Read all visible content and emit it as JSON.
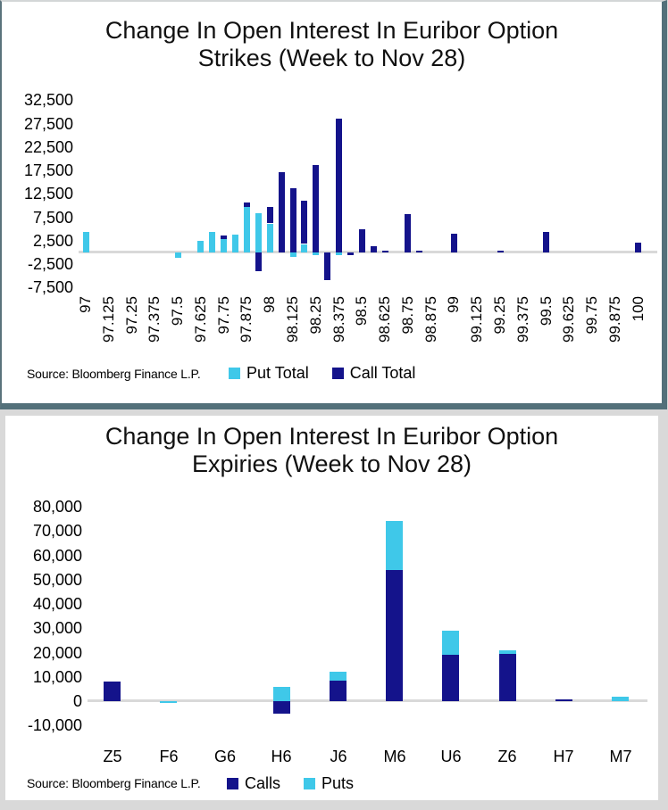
{
  "page": {
    "background": "#D9D9D9"
  },
  "colors": {
    "call": "#14138B",
    "put": "#3FC8E9",
    "axis_line": "#D9D9D9",
    "panel_border": "#53707A"
  },
  "chart_data": [
    {
      "type": "bar",
      "variant": "stacked-column",
      "title_line1": "Change In Open Interest In Euribor Option",
      "title_line2": "Strikes (Week to Nov 28)",
      "source": "Source: Bloomberg Finance L.P.",
      "legend": [
        {
          "name": "Put Total",
          "series": "put"
        },
        {
          "name": "Call Total",
          "series": "call"
        }
      ],
      "legend_position": "bottom",
      "grid": false,
      "ylim": [
        -7500,
        32500
      ],
      "ytick_step": 5000,
      "y_tick_values": [
        32500,
        27500,
        22500,
        17500,
        12500,
        7500,
        2500,
        -2500,
        -7500
      ],
      "y_tick_labels": [
        "32,500",
        "27,500",
        "22,500",
        "17,500",
        "12,500",
        "7,500",
        "2,500",
        "-2,500",
        "-7,500"
      ],
      "x_tick_labels": [
        "97",
        "97.125",
        "97.25",
        "97.375",
        "97.5",
        "97.625",
        "97.75",
        "97.875",
        "98",
        "98.125",
        "98.25",
        "98.375",
        "98.5",
        "98.625",
        "98.75",
        "98.875",
        "99",
        "99.125",
        "99.25",
        "99.375",
        "99.5",
        "99.625",
        "99.75",
        "99.875",
        "100"
      ],
      "x_label_rotation_deg": 90,
      "x_note": "strikes spaced 0.0625 apart; axis labelled every 0.125",
      "points": [
        {
          "strike": "97",
          "put": 4400,
          "call": 0
        },
        {
          "strike": "97.5",
          "put": -1100,
          "call": 0
        },
        {
          "strike": "97.625",
          "put": 2500,
          "call": 0
        },
        {
          "strike": "97.6875",
          "put": 4400,
          "call": 0
        },
        {
          "strike": "97.75",
          "put": 2900,
          "call": 700
        },
        {
          "strike": "97.8125",
          "put": 3800,
          "call": 0
        },
        {
          "strike": "97.875",
          "put": 9800,
          "call": 800
        },
        {
          "strike": "97.9375",
          "put": 8300,
          "call": -3900
        },
        {
          "strike": "98",
          "put": 6200,
          "call": 3600
        },
        {
          "strike": "98.0625",
          "put": 0,
          "call": 17200
        },
        {
          "strike": "98.125",
          "put": -1000,
          "call": 13800
        },
        {
          "strike": "98.1875",
          "put": 1800,
          "call": 9300
        },
        {
          "strike": "98.25",
          "put": -600,
          "call": 18700
        },
        {
          "strike": "98.3125",
          "put": 0,
          "call": -5900
        },
        {
          "strike": "98.375",
          "put": -500,
          "call": 28600
        },
        {
          "strike": "98.4375",
          "put": 0,
          "call": -600
        },
        {
          "strike": "98.5",
          "put": 0,
          "call": 4900
        },
        {
          "strike": "98.5625",
          "put": 0,
          "call": 1300
        },
        {
          "strike": "98.625",
          "put": 0,
          "call": 300
        },
        {
          "strike": "98.75",
          "put": 0,
          "call": 8250
        },
        {
          "strike": "98.8125",
          "put": 0,
          "call": 300
        },
        {
          "strike": "99",
          "put": 0,
          "call": 4000
        },
        {
          "strike": "99.25",
          "put": 0,
          "call": 300
        },
        {
          "strike": "99.5",
          "put": 0,
          "call": 4300
        },
        {
          "strike": "100",
          "put": 0,
          "call": 2100
        }
      ]
    },
    {
      "type": "bar",
      "variant": "stacked-column",
      "title_line1": "Change In Open Interest In Euribor Option",
      "title_line2": "Expiries (Week to Nov 28)",
      "source": "Source: Bloomberg Finance L.P.",
      "legend": [
        {
          "name": "Calls",
          "series": "call"
        },
        {
          "name": "Puts",
          "series": "put"
        }
      ],
      "legend_position": "bottom",
      "grid": false,
      "ylim": [
        -10000,
        80000
      ],
      "ytick_step": 10000,
      "y_tick_values": [
        80000,
        70000,
        60000,
        50000,
        40000,
        30000,
        20000,
        10000,
        0,
        -10000
      ],
      "y_tick_labels": [
        "80,000",
        "70,000",
        "60,000",
        "50,000",
        "40,000",
        "30,000",
        "20,000",
        "10,000",
        "0",
        "-10,000"
      ],
      "categories": [
        "Z5",
        "F6",
        "G6",
        "H6",
        "J6",
        "M6",
        "U6",
        "Z6",
        "H7",
        "M7"
      ],
      "series": [
        {
          "name": "Calls",
          "key": "call",
          "values": [
            8000,
            0,
            0,
            -5000,
            8500,
            54000,
            19000,
            19500,
            700,
            0
          ]
        },
        {
          "name": "Puts",
          "key": "put",
          "values": [
            0,
            -800,
            0,
            6000,
            3500,
            20000,
            10000,
            1500,
            0,
            2000
          ]
        }
      ]
    }
  ]
}
